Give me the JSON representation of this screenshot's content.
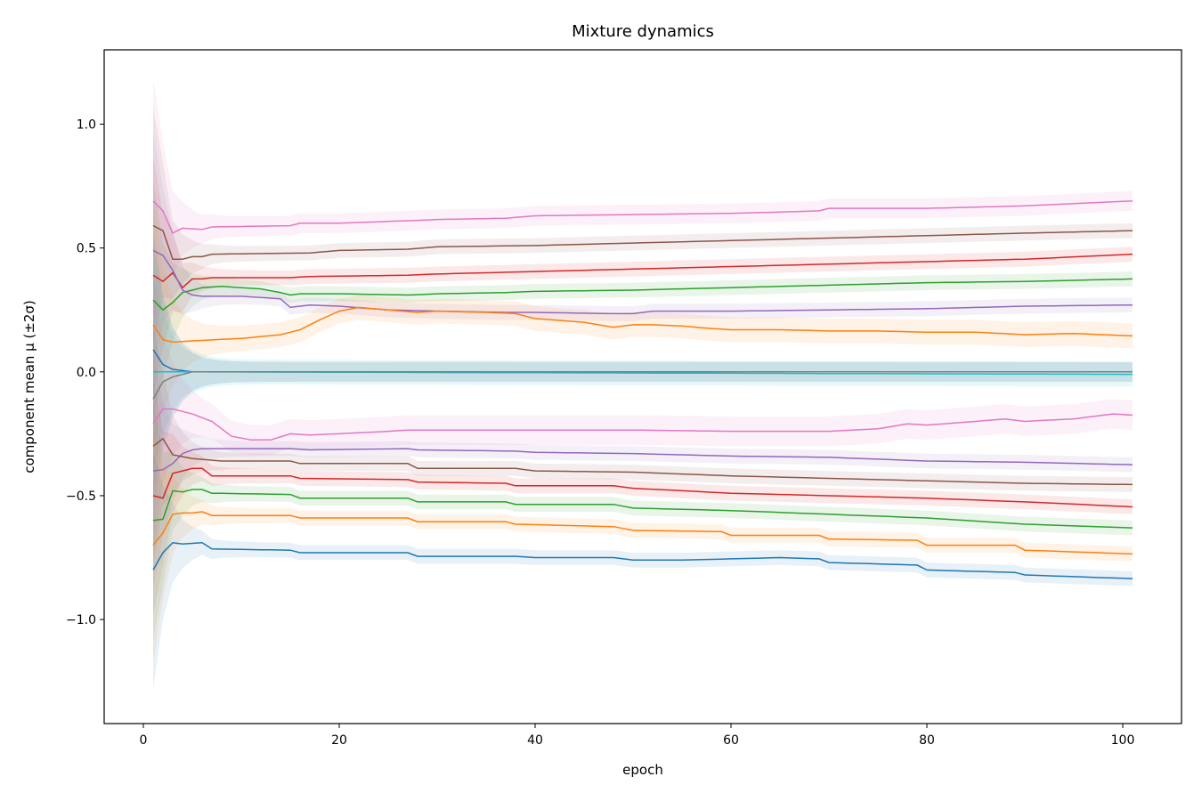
{
  "chart_data": {
    "type": "line",
    "title": "Mixture dynamics",
    "xlabel": "epoch",
    "ylabel": "component mean μ (±2σ)",
    "xlim": [
      -4,
      106
    ],
    "ylim": [
      -1.42,
      1.3
    ],
    "x_ticks": [
      0,
      20,
      40,
      60,
      80,
      100
    ],
    "y_ticks": [
      -1.0,
      -0.5,
      0.0,
      0.5,
      1.0
    ],
    "x_tick_labels": [
      "0",
      "20",
      "40",
      "60",
      "80",
      "100"
    ],
    "y_tick_labels": [
      "−1.0",
      "−0.5",
      "0.0",
      "0.5",
      "1.0"
    ],
    "grid": false,
    "legend": "none",
    "band": "±2σ",
    "series": [
      {
        "color": "#e377c2",
        "band": 0.04,
        "points": [
          [
            1,
            0.69
          ],
          [
            2,
            0.65
          ],
          [
            3,
            0.56
          ],
          [
            4,
            0.58
          ],
          [
            6,
            0.575
          ],
          [
            7,
            0.585
          ],
          [
            15,
            0.59
          ],
          [
            16,
            0.6
          ],
          [
            20,
            0.6
          ],
          [
            27,
            0.61
          ],
          [
            30,
            0.615
          ],
          [
            37,
            0.62
          ],
          [
            40,
            0.63
          ],
          [
            50,
            0.635
          ],
          [
            60,
            0.64
          ],
          [
            65,
            0.645
          ],
          [
            69,
            0.65
          ],
          [
            70,
            0.66
          ],
          [
            80,
            0.66
          ],
          [
            90,
            0.67
          ],
          [
            101,
            0.69
          ]
        ]
      },
      {
        "color": "#8c564b",
        "band": 0.03,
        "points": [
          [
            1,
            0.59
          ],
          [
            2,
            0.57
          ],
          [
            3,
            0.455
          ],
          [
            4,
            0.455
          ],
          [
            5,
            0.465
          ],
          [
            6,
            0.465
          ],
          [
            7,
            0.475
          ],
          [
            17,
            0.48
          ],
          [
            20,
            0.49
          ],
          [
            27,
            0.495
          ],
          [
            30,
            0.505
          ],
          [
            40,
            0.51
          ],
          [
            50,
            0.52
          ],
          [
            60,
            0.53
          ],
          [
            70,
            0.54
          ],
          [
            80,
            0.55
          ],
          [
            90,
            0.56
          ],
          [
            101,
            0.57
          ]
        ]
      },
      {
        "color": "#d62728",
        "band": 0.03,
        "points": [
          [
            1,
            0.39
          ],
          [
            2,
            0.365
          ],
          [
            3,
            0.4
          ],
          [
            4,
            0.34
          ],
          [
            5,
            0.375
          ],
          [
            6,
            0.375
          ],
          [
            7,
            0.38
          ],
          [
            15,
            0.38
          ],
          [
            17,
            0.385
          ],
          [
            27,
            0.39
          ],
          [
            30,
            0.395
          ],
          [
            40,
            0.405
          ],
          [
            50,
            0.415
          ],
          [
            60,
            0.425
          ],
          [
            70,
            0.435
          ],
          [
            80,
            0.445
          ],
          [
            90,
            0.455
          ],
          [
            101,
            0.475
          ]
        ]
      },
      {
        "color": "#2ca02c",
        "band": 0.03,
        "points": [
          [
            1,
            0.29
          ],
          [
            2,
            0.25
          ],
          [
            3,
            0.28
          ],
          [
            4,
            0.32
          ],
          [
            5,
            0.33
          ],
          [
            6,
            0.34
          ],
          [
            8,
            0.345
          ],
          [
            10,
            0.34
          ],
          [
            12,
            0.335
          ],
          [
            14,
            0.32
          ],
          [
            15,
            0.31
          ],
          [
            16,
            0.315
          ],
          [
            20,
            0.315
          ],
          [
            27,
            0.31
          ],
          [
            30,
            0.315
          ],
          [
            37,
            0.32
          ],
          [
            40,
            0.325
          ],
          [
            50,
            0.33
          ],
          [
            60,
            0.34
          ],
          [
            70,
            0.35
          ],
          [
            80,
            0.36
          ],
          [
            90,
            0.365
          ],
          [
            101,
            0.375
          ]
        ]
      },
      {
        "color": "#9467bd",
        "band": 0.03,
        "points": [
          [
            1,
            0.49
          ],
          [
            2,
            0.47
          ],
          [
            3,
            0.41
          ],
          [
            4,
            0.33
          ],
          [
            5,
            0.31
          ],
          [
            6,
            0.305
          ],
          [
            7,
            0.305
          ],
          [
            10,
            0.305
          ],
          [
            14,
            0.295
          ],
          [
            15,
            0.26
          ],
          [
            17,
            0.27
          ],
          [
            20,
            0.265
          ],
          [
            25,
            0.25
          ],
          [
            30,
            0.245
          ],
          [
            37,
            0.24
          ],
          [
            40,
            0.24
          ],
          [
            48,
            0.235
          ],
          [
            50,
            0.235
          ],
          [
            52,
            0.245
          ],
          [
            60,
            0.245
          ],
          [
            70,
            0.25
          ],
          [
            80,
            0.255
          ],
          [
            90,
            0.265
          ],
          [
            101,
            0.27
          ]
        ]
      },
      {
        "color": "#ff7f0e",
        "band": 0.05,
        "points": [
          [
            1,
            0.19
          ],
          [
            2,
            0.13
          ],
          [
            3,
            0.12
          ],
          [
            5,
            0.125
          ],
          [
            10,
            0.135
          ],
          [
            14,
            0.15
          ],
          [
            16,
            0.17
          ],
          [
            18,
            0.21
          ],
          [
            20,
            0.245
          ],
          [
            22,
            0.26
          ],
          [
            25,
            0.25
          ],
          [
            28,
            0.24
          ],
          [
            30,
            0.245
          ],
          [
            35,
            0.24
          ],
          [
            38,
            0.235
          ],
          [
            40,
            0.215
          ],
          [
            45,
            0.2
          ],
          [
            48,
            0.18
          ],
          [
            50,
            0.19
          ],
          [
            52,
            0.19
          ],
          [
            55,
            0.185
          ],
          [
            58,
            0.175
          ],
          [
            60,
            0.17
          ],
          [
            65,
            0.17
          ],
          [
            70,
            0.165
          ],
          [
            75,
            0.165
          ],
          [
            80,
            0.16
          ],
          [
            85,
            0.16
          ],
          [
            90,
            0.15
          ],
          [
            95,
            0.155
          ],
          [
            101,
            0.145
          ]
        ]
      },
      {
        "color": "#1f77b4",
        "band": 0.04,
        "points": [
          [
            1,
            0.09
          ],
          [
            2,
            0.03
          ],
          [
            3,
            0.01
          ],
          [
            4,
            0.005
          ],
          [
            5,
            0.0
          ],
          [
            101,
            0.0
          ]
        ]
      },
      {
        "color": "#17becf",
        "band": 0.05,
        "points": [
          [
            1,
            0.0
          ],
          [
            5,
            0.0
          ],
          [
            101,
            -0.01
          ]
        ]
      },
      {
        "color": "#7f7f7f",
        "band": 0.04,
        "points": [
          [
            1,
            -0.11
          ],
          [
            2,
            -0.04
          ],
          [
            3,
            -0.02
          ],
          [
            4,
            -0.01
          ],
          [
            5,
            0.0
          ],
          [
            101,
            0.0
          ]
        ]
      },
      {
        "color": "#e377c2",
        "band": 0.06,
        "points": [
          [
            1,
            -0.21
          ],
          [
            2,
            -0.15
          ],
          [
            3,
            -0.15
          ],
          [
            5,
            -0.17
          ],
          [
            7,
            -0.2
          ],
          [
            9,
            -0.26
          ],
          [
            11,
            -0.275
          ],
          [
            13,
            -0.275
          ],
          [
            15,
            -0.25
          ],
          [
            17,
            -0.255
          ],
          [
            20,
            -0.25
          ],
          [
            25,
            -0.24
          ],
          [
            27,
            -0.235
          ],
          [
            30,
            -0.235
          ],
          [
            40,
            -0.235
          ],
          [
            50,
            -0.235
          ],
          [
            60,
            -0.24
          ],
          [
            70,
            -0.24
          ],
          [
            75,
            -0.23
          ],
          [
            78,
            -0.21
          ],
          [
            80,
            -0.215
          ],
          [
            85,
            -0.2
          ],
          [
            88,
            -0.19
          ],
          [
            90,
            -0.2
          ],
          [
            95,
            -0.19
          ],
          [
            99,
            -0.17
          ],
          [
            101,
            -0.175
          ]
        ]
      },
      {
        "color": "#9467bd",
        "band": 0.03,
        "points": [
          [
            1,
            -0.4
          ],
          [
            2,
            -0.395
          ],
          [
            3,
            -0.37
          ],
          [
            4,
            -0.33
          ],
          [
            5,
            -0.315
          ],
          [
            6,
            -0.31
          ],
          [
            10,
            -0.31
          ],
          [
            15,
            -0.31
          ],
          [
            17,
            -0.315
          ],
          [
            27,
            -0.31
          ],
          [
            28,
            -0.315
          ],
          [
            38,
            -0.32
          ],
          [
            40,
            -0.325
          ],
          [
            50,
            -0.33
          ],
          [
            60,
            -0.34
          ],
          [
            70,
            -0.345
          ],
          [
            80,
            -0.36
          ],
          [
            90,
            -0.365
          ],
          [
            101,
            -0.375
          ]
        ]
      },
      {
        "color": "#8c564b",
        "band": 0.03,
        "points": [
          [
            1,
            -0.3
          ],
          [
            2,
            -0.27
          ],
          [
            3,
            -0.335
          ],
          [
            5,
            -0.35
          ],
          [
            8,
            -0.36
          ],
          [
            15,
            -0.36
          ],
          [
            16,
            -0.37
          ],
          [
            27,
            -0.37
          ],
          [
            28,
            -0.39
          ],
          [
            38,
            -0.39
          ],
          [
            40,
            -0.4
          ],
          [
            50,
            -0.405
          ],
          [
            60,
            -0.42
          ],
          [
            70,
            -0.43
          ],
          [
            80,
            -0.44
          ],
          [
            90,
            -0.45
          ],
          [
            101,
            -0.455
          ]
        ]
      },
      {
        "color": "#d62728",
        "band": 0.03,
        "points": [
          [
            1,
            -0.5
          ],
          [
            2,
            -0.51
          ],
          [
            3,
            -0.41
          ],
          [
            4,
            -0.4
          ],
          [
            5,
            -0.39
          ],
          [
            6,
            -0.39
          ],
          [
            7,
            -0.42
          ],
          [
            15,
            -0.42
          ],
          [
            16,
            -0.43
          ],
          [
            27,
            -0.435
          ],
          [
            28,
            -0.445
          ],
          [
            37,
            -0.45
          ],
          [
            38,
            -0.46
          ],
          [
            48,
            -0.46
          ],
          [
            50,
            -0.47
          ],
          [
            60,
            -0.49
          ],
          [
            70,
            -0.5
          ],
          [
            80,
            -0.51
          ],
          [
            90,
            -0.525
          ],
          [
            101,
            -0.545
          ]
        ]
      },
      {
        "color": "#2ca02c",
        "band": 0.03,
        "points": [
          [
            1,
            -0.6
          ],
          [
            2,
            -0.595
          ],
          [
            3,
            -0.48
          ],
          [
            4,
            -0.485
          ],
          [
            5,
            -0.475
          ],
          [
            6,
            -0.475
          ],
          [
            7,
            -0.49
          ],
          [
            15,
            -0.495
          ],
          [
            16,
            -0.51
          ],
          [
            27,
            -0.51
          ],
          [
            28,
            -0.525
          ],
          [
            37,
            -0.525
          ],
          [
            38,
            -0.535
          ],
          [
            48,
            -0.535
          ],
          [
            50,
            -0.55
          ],
          [
            60,
            -0.56
          ],
          [
            70,
            -0.575
          ],
          [
            80,
            -0.59
          ],
          [
            90,
            -0.615
          ],
          [
            101,
            -0.63
          ]
        ]
      },
      {
        "color": "#ff7f0e",
        "band": 0.03,
        "points": [
          [
            1,
            -0.7
          ],
          [
            2,
            -0.65
          ],
          [
            3,
            -0.575
          ],
          [
            4,
            -0.57
          ],
          [
            5,
            -0.57
          ],
          [
            6,
            -0.565
          ],
          [
            7,
            -0.58
          ],
          [
            15,
            -0.58
          ],
          [
            16,
            -0.59
          ],
          [
            27,
            -0.59
          ],
          [
            28,
            -0.605
          ],
          [
            37,
            -0.605
          ],
          [
            38,
            -0.615
          ],
          [
            48,
            -0.625
          ],
          [
            50,
            -0.64
          ],
          [
            59,
            -0.645
          ],
          [
            60,
            -0.66
          ],
          [
            69,
            -0.66
          ],
          [
            70,
            -0.675
          ],
          [
            79,
            -0.68
          ],
          [
            80,
            -0.7
          ],
          [
            89,
            -0.7
          ],
          [
            90,
            -0.72
          ],
          [
            101,
            -0.735
          ]
        ]
      },
      {
        "color": "#1f77b4",
        "band": 0.03,
        "points": [
          [
            1,
            -0.8
          ],
          [
            2,
            -0.73
          ],
          [
            3,
            -0.69
          ],
          [
            4,
            -0.695
          ],
          [
            6,
            -0.69
          ],
          [
            7,
            -0.715
          ],
          [
            15,
            -0.72
          ],
          [
            16,
            -0.73
          ],
          [
            27,
            -0.73
          ],
          [
            28,
            -0.745
          ],
          [
            38,
            -0.745
          ],
          [
            40,
            -0.75
          ],
          [
            48,
            -0.75
          ],
          [
            50,
            -0.76
          ],
          [
            55,
            -0.76
          ],
          [
            60,
            -0.755
          ],
          [
            65,
            -0.75
          ],
          [
            69,
            -0.755
          ],
          [
            70,
            -0.77
          ],
          [
            79,
            -0.78
          ],
          [
            80,
            -0.8
          ],
          [
            89,
            -0.81
          ],
          [
            90,
            -0.82
          ],
          [
            101,
            -0.835
          ]
        ]
      }
    ]
  }
}
